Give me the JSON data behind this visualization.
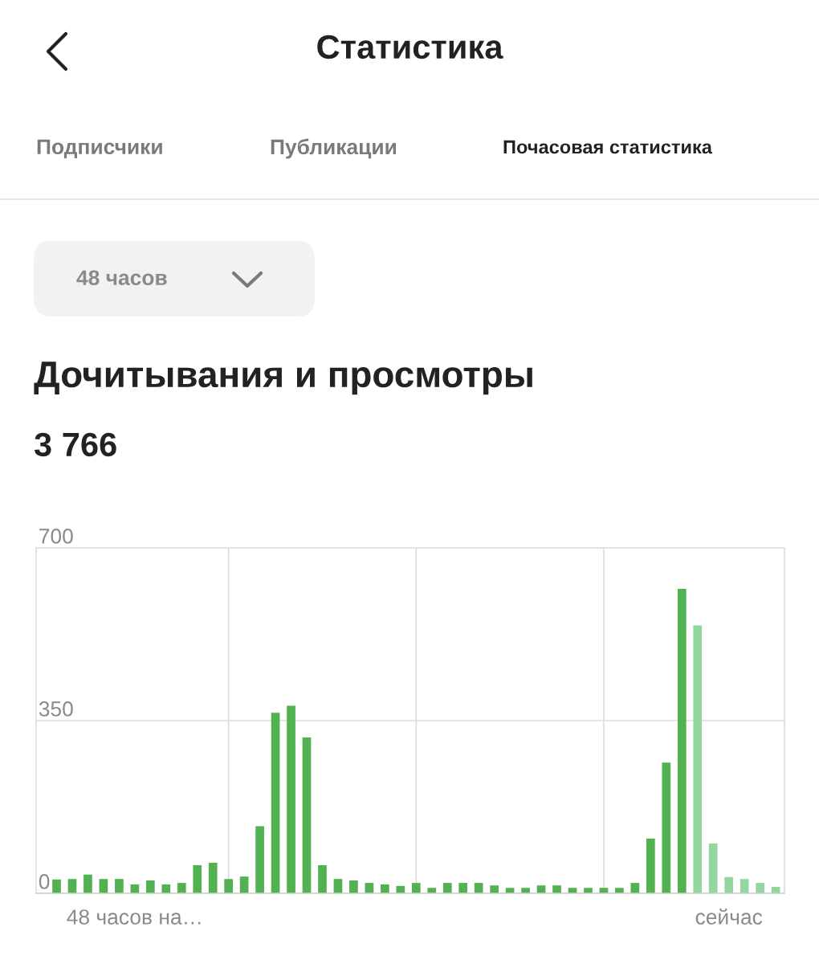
{
  "chart_data": {
    "type": "bar",
    "title": "Дочитывания и просмотры",
    "subtitle": "3 766",
    "annotations": [
      "Статистика",
      "Подписчики",
      "Публикации",
      "Почасовая статистика",
      "48 часов"
    ],
    "categories": [
      null,
      null,
      null,
      null,
      null,
      null,
      "48 часов на…",
      null,
      null,
      null,
      null,
      null,
      null,
      null,
      null,
      null,
      null,
      null,
      null,
      null,
      null,
      null,
      null,
      null,
      null,
      null,
      null,
      null,
      null,
      null,
      null,
      null,
      null,
      null,
      null,
      null,
      null,
      null,
      null,
      null,
      null,
      null,
      null,
      null,
      "сейчас",
      null,
      null,
      null
    ],
    "values": [
      null,
      28,
      29,
      38,
      29,
      29,
      18,
      26,
      18,
      21,
      57,
      62,
      29,
      34,
      136,
      366,
      380,
      316,
      57,
      29,
      26,
      21,
      18,
      15,
      21,
      11,
      21,
      21,
      21,
      16,
      11,
      11,
      16,
      16,
      11,
      11,
      11,
      11,
      21,
      111,
      265,
      617,
      543,
      101,
      33,
      29,
      21,
      13
    ],
    "colors": [
      "#52b252",
      "#52b252",
      "#52b252",
      "#52b252",
      "#52b252",
      "#52b252",
      "#52b252",
      "#52b252",
      "#52b252",
      "#52b252",
      "#52b252",
      "#52b252",
      "#52b252",
      "#52b252",
      "#52b252",
      "#52b252",
      "#52b252",
      "#52b252",
      "#52b252",
      "#52b252",
      "#52b252",
      "#52b252",
      "#52b252",
      "#52b252",
      "#52b252",
      "#52b252",
      "#52b252",
      "#52b252",
      "#52b252",
      "#52b252",
      "#52b252",
      "#52b252",
      "#52b252",
      "#52b252",
      "#52b252",
      "#52b252",
      "#52b252",
      "#52b252",
      "#52b252",
      "#52b252",
      "#52b252",
      "#52b252",
      "#93d6a0",
      "#93d6a0",
      "#93d6a0",
      "#93d6a0",
      "#93d6a0",
      "#93d6a0"
    ],
    "ylim": [
      0,
      700
    ],
    "yticks": [
      0,
      350,
      700
    ],
    "grid": true
  }
}
